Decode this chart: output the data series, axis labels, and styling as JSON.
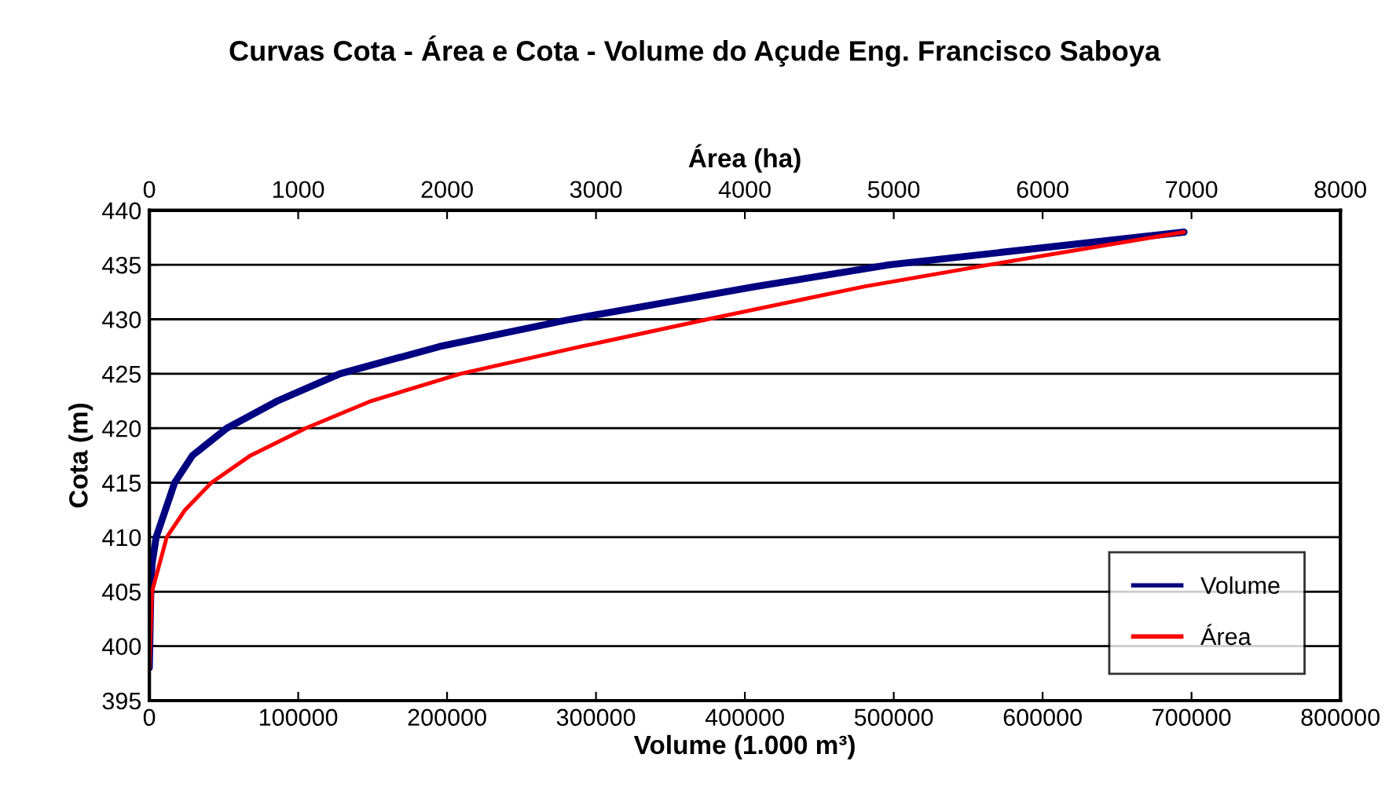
{
  "chart_data": {
    "type": "line",
    "title": "Curvas Cota - Área e Cota - Volume do Açude Eng. Francisco Saboya",
    "xlabel": "Volume (1.000 m³)",
    "x2label": "Área (ha)",
    "ylabel": "Cota (m)",
    "series": [
      {
        "name": "Volume",
        "color": "#000080",
        "x": [
          0,
          1000,
          1800,
          4600,
          17000,
          29000,
          52000,
          86000,
          128000,
          195000,
          283000,
          407000,
          497000,
          695000
        ],
        "values": [
          398,
          405,
          407.5,
          410,
          415,
          417.5,
          420,
          422.5,
          425,
          427.5,
          430,
          433,
          435,
          438
        ]
      },
      {
        "name": "Área",
        "color": "#ff0000",
        "axis": "x2",
        "x": [
          0,
          18,
          117,
          240,
          417,
          680,
          1050,
          1490,
          2090,
          2900,
          3750,
          4800,
          5640,
          6950
        ],
        "values": [
          398,
          405,
          410,
          412.5,
          415,
          417.5,
          420,
          422.5,
          425,
          427.5,
          430,
          433,
          435,
          438
        ]
      }
    ],
    "xlim": [
      0,
      800000
    ],
    "xticks": [
      0,
      100000,
      200000,
      300000,
      400000,
      500000,
      600000,
      700000,
      800000
    ],
    "x2lim": [
      0,
      8000
    ],
    "x2ticks": [
      0,
      1000,
      2000,
      3000,
      4000,
      5000,
      6000,
      7000,
      8000
    ],
    "ylim": [
      395,
      440
    ],
    "yticks": [
      395,
      400,
      405,
      410,
      415,
      420,
      425,
      430,
      435,
      440
    ],
    "grid": "y",
    "legend": "bottom right",
    "marker": "none",
    "line_style": "solid"
  }
}
